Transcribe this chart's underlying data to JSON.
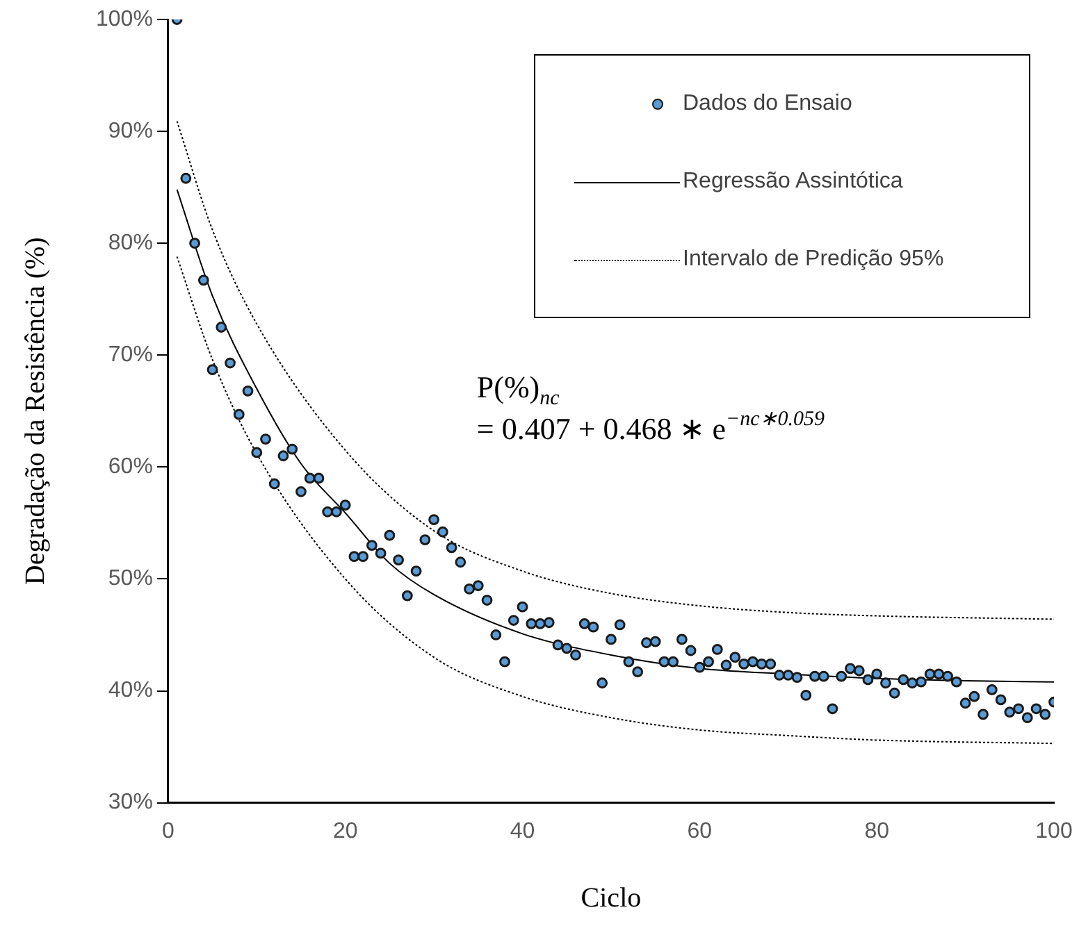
{
  "chart_data": {
    "type": "scatter",
    "xlabel": "Ciclo",
    "ylabel": "Degradação da Resistência (%)",
    "annotations": [
      "P(%)$_{nc}$\n= 0.407 + 0.468 ∗ e$^{−nc∗0.059}$"
    ],
    "xlim": [
      0,
      100
    ],
    "xticks": [
      0,
      20,
      40,
      60,
      80,
      100
    ],
    "ylim": [
      30,
      100
    ],
    "yticks": [
      {
        "value": 30,
        "label": "30%"
      },
      {
        "value": 40,
        "label": "40%"
      },
      {
        "value": 50,
        "label": "50%"
      },
      {
        "value": 60,
        "label": "60%"
      },
      {
        "value": 70,
        "label": "70%"
      },
      {
        "value": 80,
        "label": "80%"
      },
      {
        "value": 90,
        "label": "90%"
      },
      {
        "value": 100,
        "label": "100%"
      }
    ],
    "grid": false,
    "legend": "top right",
    "marker": "circle",
    "series": [
      {
        "name": "Dados do Ensaio",
        "type": "scatter",
        "color": "#5b9bd5",
        "x": [
          1,
          2,
          3,
          4,
          5,
          6,
          7,
          8,
          9,
          10,
          11,
          12,
          13,
          14,
          15,
          16,
          17,
          18,
          19,
          20,
          21,
          22,
          23,
          24,
          25,
          26,
          27,
          28,
          29,
          30,
          31,
          32,
          33,
          34,
          35,
          36,
          37,
          38,
          39,
          40,
          41,
          42,
          43,
          44,
          45,
          46,
          47,
          48,
          49,
          50,
          51,
          52,
          53,
          54,
          55,
          56,
          57,
          58,
          59,
          60,
          61,
          62,
          63,
          64,
          65,
          66,
          67,
          68,
          69,
          70,
          71,
          72,
          73,
          74,
          75,
          76,
          77,
          78,
          79,
          80,
          81,
          82,
          83,
          84,
          85,
          86,
          87,
          88,
          89,
          90,
          91,
          92,
          93,
          94,
          95,
          96,
          97,
          98,
          99,
          100
        ],
        "values": [
          100,
          85.8,
          80,
          76.7,
          68.7,
          72.5,
          69.3,
          64.7,
          66.8,
          61.3,
          62.5,
          58.5,
          61,
          61.6,
          57.8,
          59,
          59,
          56,
          56,
          56.6,
          52,
          52,
          53,
          52.3,
          53.9,
          51.7,
          48.5,
          50.7,
          53.5,
          55.3,
          54.2,
          52.8,
          51.5,
          49.1,
          49.4,
          48.1,
          45,
          42.6,
          46.3,
          47.5,
          46,
          46,
          46.1,
          44.1,
          43.8,
          43.2,
          46,
          45.7,
          40.7,
          44.6,
          45.9,
          42.6,
          41.7,
          44.3,
          44.4,
          42.6,
          42.6,
          44.6,
          43.6,
          42.1,
          42.6,
          43.7,
          42.3,
          43,
          42.4,
          42.6,
          42.4,
          42.4,
          41.4,
          41.4,
          41.2,
          39.6,
          41.3,
          41.3,
          38.4,
          41.3,
          42,
          41.8,
          41,
          41.5,
          40.7,
          39.8,
          41,
          40.7,
          40.8,
          41.5,
          41.5,
          41.3,
          40.8,
          38.9,
          39.5,
          37.9,
          40.1,
          39.2,
          38.1,
          38.4,
          37.6,
          38.4,
          37.9,
          39
        ]
      },
      {
        "name": "Regressão Assintótica",
        "type": "line",
        "marker": "none",
        "line_style": "solid",
        "color": "#000000",
        "x": [
          1,
          5,
          10,
          15,
          20,
          25,
          30,
          40,
          50,
          60,
          70,
          80,
          90,
          100
        ],
        "values": [
          84.8,
          75.3,
          67.0,
          60.3,
          55.9,
          51.4,
          48.6,
          45.1,
          43.2,
          42.0,
          41.5,
          41.1,
          40.9,
          40.8
        ]
      },
      {
        "name": "Intervalo de Predição 95%",
        "type": "line",
        "marker": "none",
        "line_style": "dotted",
        "color": "#000000",
        "x": [
          1,
          5,
          10,
          20,
          30,
          40,
          50,
          60,
          70,
          80,
          100
        ],
        "values": [
          90.9,
          81.2,
          72.8,
          61.5,
          54.3,
          50.7,
          48.7,
          47.6,
          47.0,
          46.7,
          46.4
        ]
      },
      {
        "type": "line",
        "marker": "none",
        "line_style": "dotted",
        "color": "#000000",
        "x": [
          1,
          5,
          10,
          20,
          30,
          40,
          50,
          60,
          70,
          80,
          100
        ],
        "values": [
          78.8,
          69.6,
          61.2,
          50.0,
          43.0,
          39.5,
          37.6,
          36.5,
          36.0,
          35.6,
          35.3
        ]
      }
    ]
  }
}
